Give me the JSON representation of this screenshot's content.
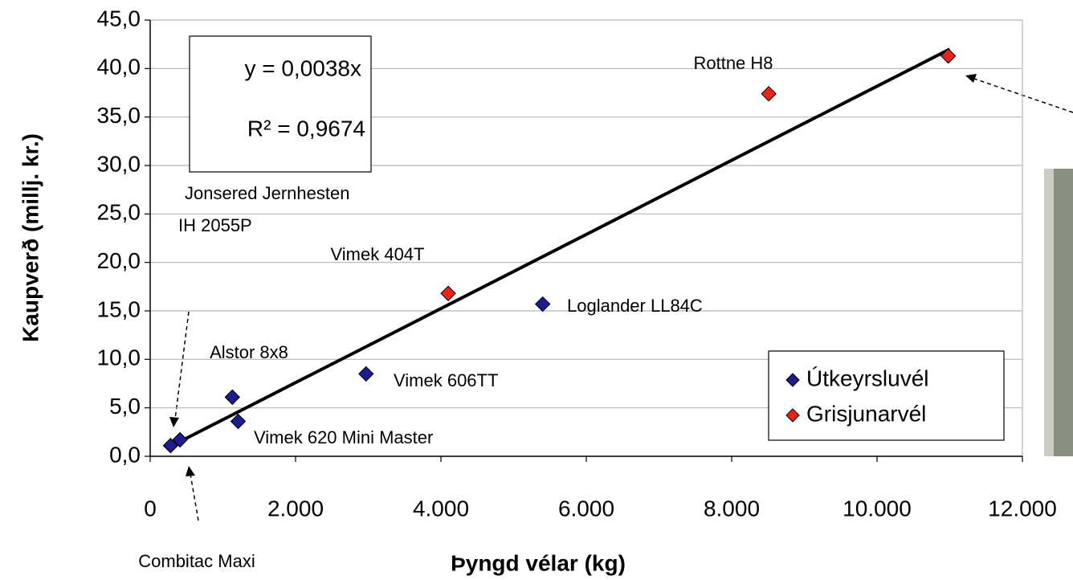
{
  "chart_data": {
    "type": "scatter",
    "xlabel": "Þyngd vélar (kg)",
    "ylabel": "Kaupverð (millj. kr.)",
    "xlim": [
      0,
      12000
    ],
    "xticks": [
      0,
      {
        "value": 2000,
        "label": "2.000"
      },
      {
        "value": 4000,
        "label": "4.000"
      },
      {
        "value": 6000,
        "label": "6.000"
      },
      {
        "value": 8000,
        "label": "8.000"
      },
      {
        "value": 10000,
        "label": "10.000"
      },
      {
        "value": 12000,
        "label": "12.000"
      }
    ],
    "ylim": [
      0,
      45
    ],
    "yticks": [
      {
        "value": 0,
        "label": "0,0"
      },
      {
        "value": 5,
        "label": "5,0"
      },
      {
        "value": 10,
        "label": "10,0"
      },
      {
        "value": 15,
        "label": "15,0"
      },
      {
        "value": 20,
        "label": "20,0"
      },
      {
        "value": 25,
        "label": "25,0"
      },
      {
        "value": 30,
        "label": "30,0"
      },
      {
        "value": 35,
        "label": "35,0"
      },
      {
        "value": 40,
        "label": "40,0"
      },
      {
        "value": 45,
        "label": "45,0"
      }
    ],
    "grid": true,
    "legend": "lower right",
    "series": [
      {
        "name": "Útkeyrsluvél",
        "color": "#1c1c8e",
        "x": [
          280,
          410,
          1130,
          1210,
          2970,
          5400
        ],
        "values": [
          1.1,
          1.7,
          6.1,
          3.6,
          8.5,
          15.7
        ]
      },
      {
        "name": "Grisjunarvél",
        "color": "#e8241e",
        "x": [
          4100,
          8510,
          10980
        ],
        "values": [
          16.8,
          37.4,
          41.3
        ]
      }
    ],
    "trendline": {
      "color": "#000000",
      "x": [
        300,
        11000
      ],
      "values": [
        1.1,
        42.0
      ]
    },
    "equation": [
      "y = 0,0038x",
      "R² = 0,9674"
    ],
    "annotations": [
      "Rottne H8",
      "Jonsered Jernhesten",
      "IH 2055P",
      "Vimek 404T",
      "Loglander LL84C",
      "Alstor 8x8",
      "Vimek 606TT",
      "Vimek 620 Mini Master",
      "Combitac Maxi"
    ]
  }
}
